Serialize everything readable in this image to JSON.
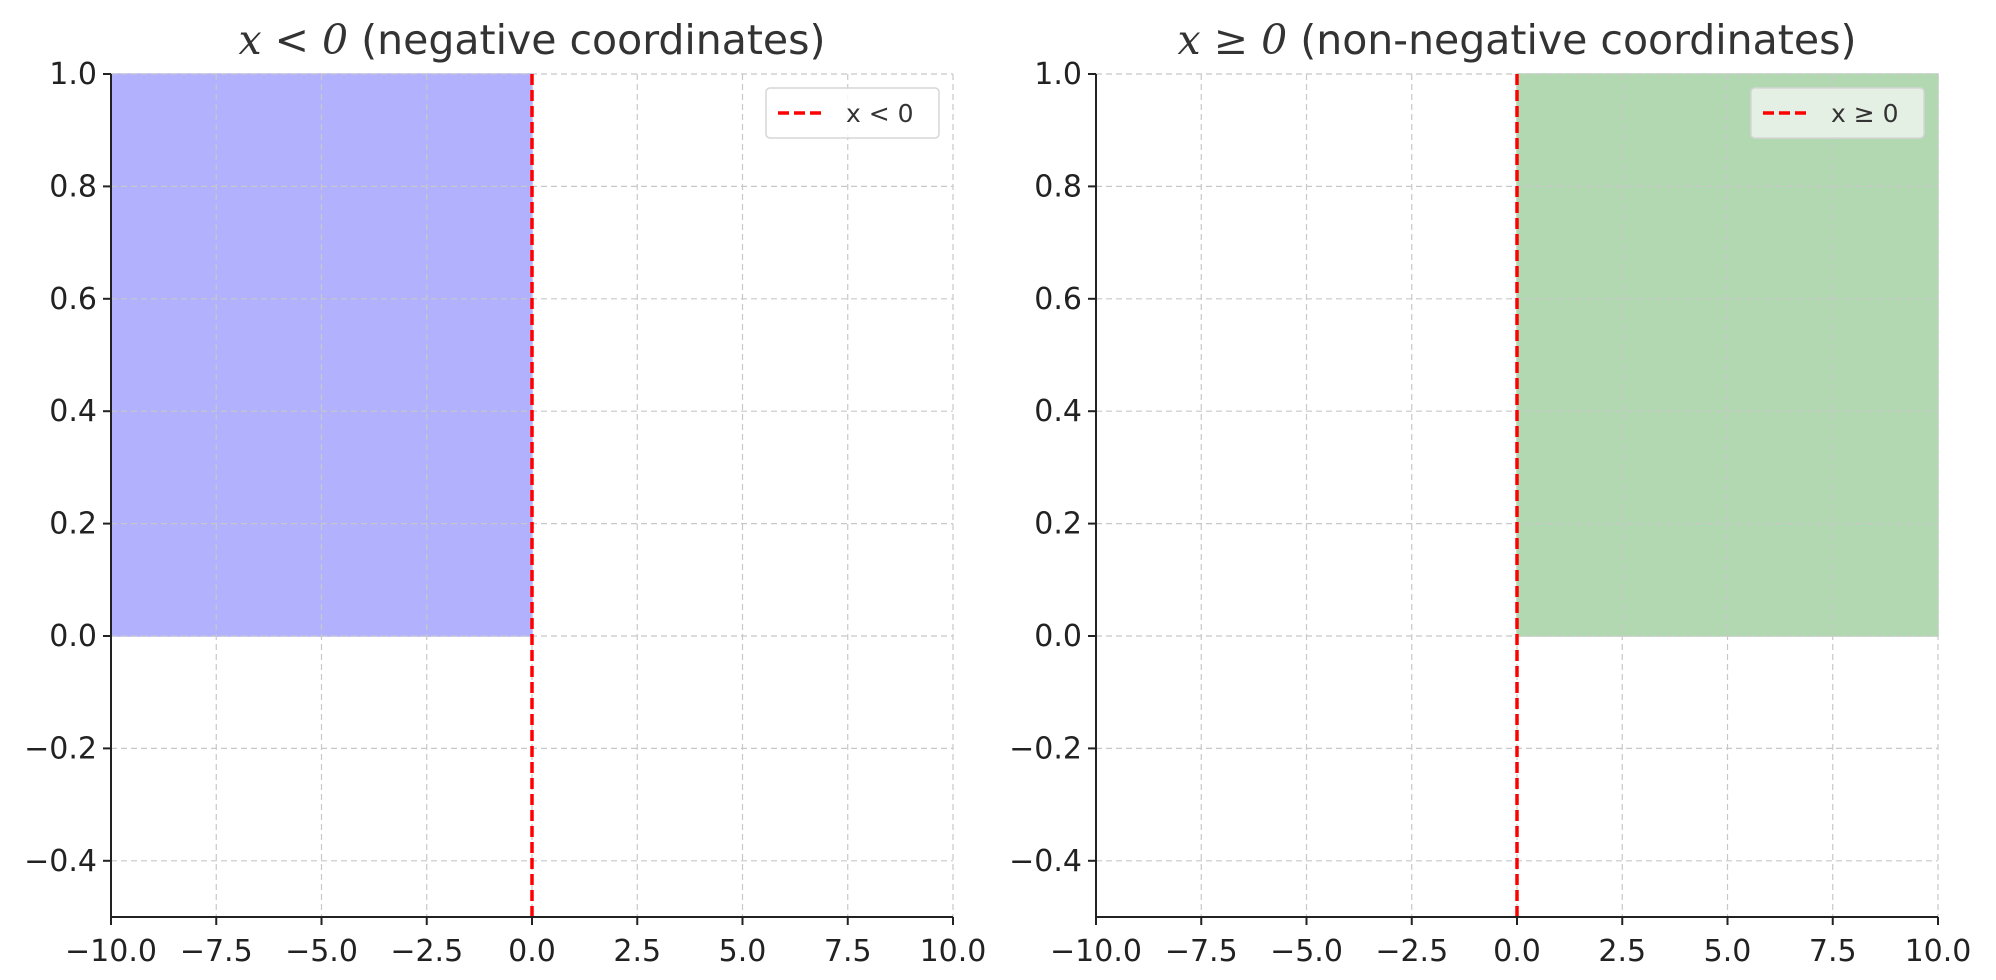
{
  "chart_data": [
    {
      "type": "area",
      "title": {
        "math": "x < 0",
        "text": " (negative coordinates)"
      },
      "xlim": [
        -10,
        10
      ],
      "ylim": [
        -0.5,
        1.0
      ],
      "x_ticks": [
        "−10.0",
        "−7.5",
        "−5.0",
        "−2.5",
        "0.0",
        "2.5",
        "5.0",
        "7.5",
        "10.0"
      ],
      "y_ticks": [
        "1.0",
        "0.8",
        "0.6",
        "0.4",
        "0.2",
        "0.0",
        "−0.2",
        "−0.4"
      ],
      "grid": true,
      "shaded_region": {
        "x": [
          -10,
          0
        ],
        "y": [
          0,
          1
        ],
        "color": "#b1b1fd"
      },
      "vline": {
        "x": 0,
        "style": "dashed",
        "color": "#ff0000",
        "name": "x < 0"
      },
      "legend_position": "top-right",
      "legend_background": "#ffffff"
    },
    {
      "type": "area",
      "title": {
        "math": "x ≥ 0",
        "text": " (non-negative coordinates)"
      },
      "xlim": [
        -10,
        10
      ],
      "ylim": [
        -0.5,
        1.0
      ],
      "x_ticks": [
        "−10.0",
        "−7.5",
        "−5.0",
        "−2.5",
        "0.0",
        "2.5",
        "5.0",
        "7.5",
        "10.0"
      ],
      "y_ticks": [
        "1.0",
        "0.8",
        "0.6",
        "0.4",
        "0.2",
        "0.0",
        "−0.2",
        "−0.4"
      ],
      "grid": true,
      "shaded_region": {
        "x": [
          0,
          10
        ],
        "y": [
          0,
          1
        ],
        "color": "#b2d8b2"
      },
      "vline": {
        "x": 0,
        "style": "dashed",
        "color": "#ff0000",
        "name": "x ≥ 0"
      },
      "legend_position": "top-right",
      "legend_background": "#edf5ed"
    }
  ]
}
